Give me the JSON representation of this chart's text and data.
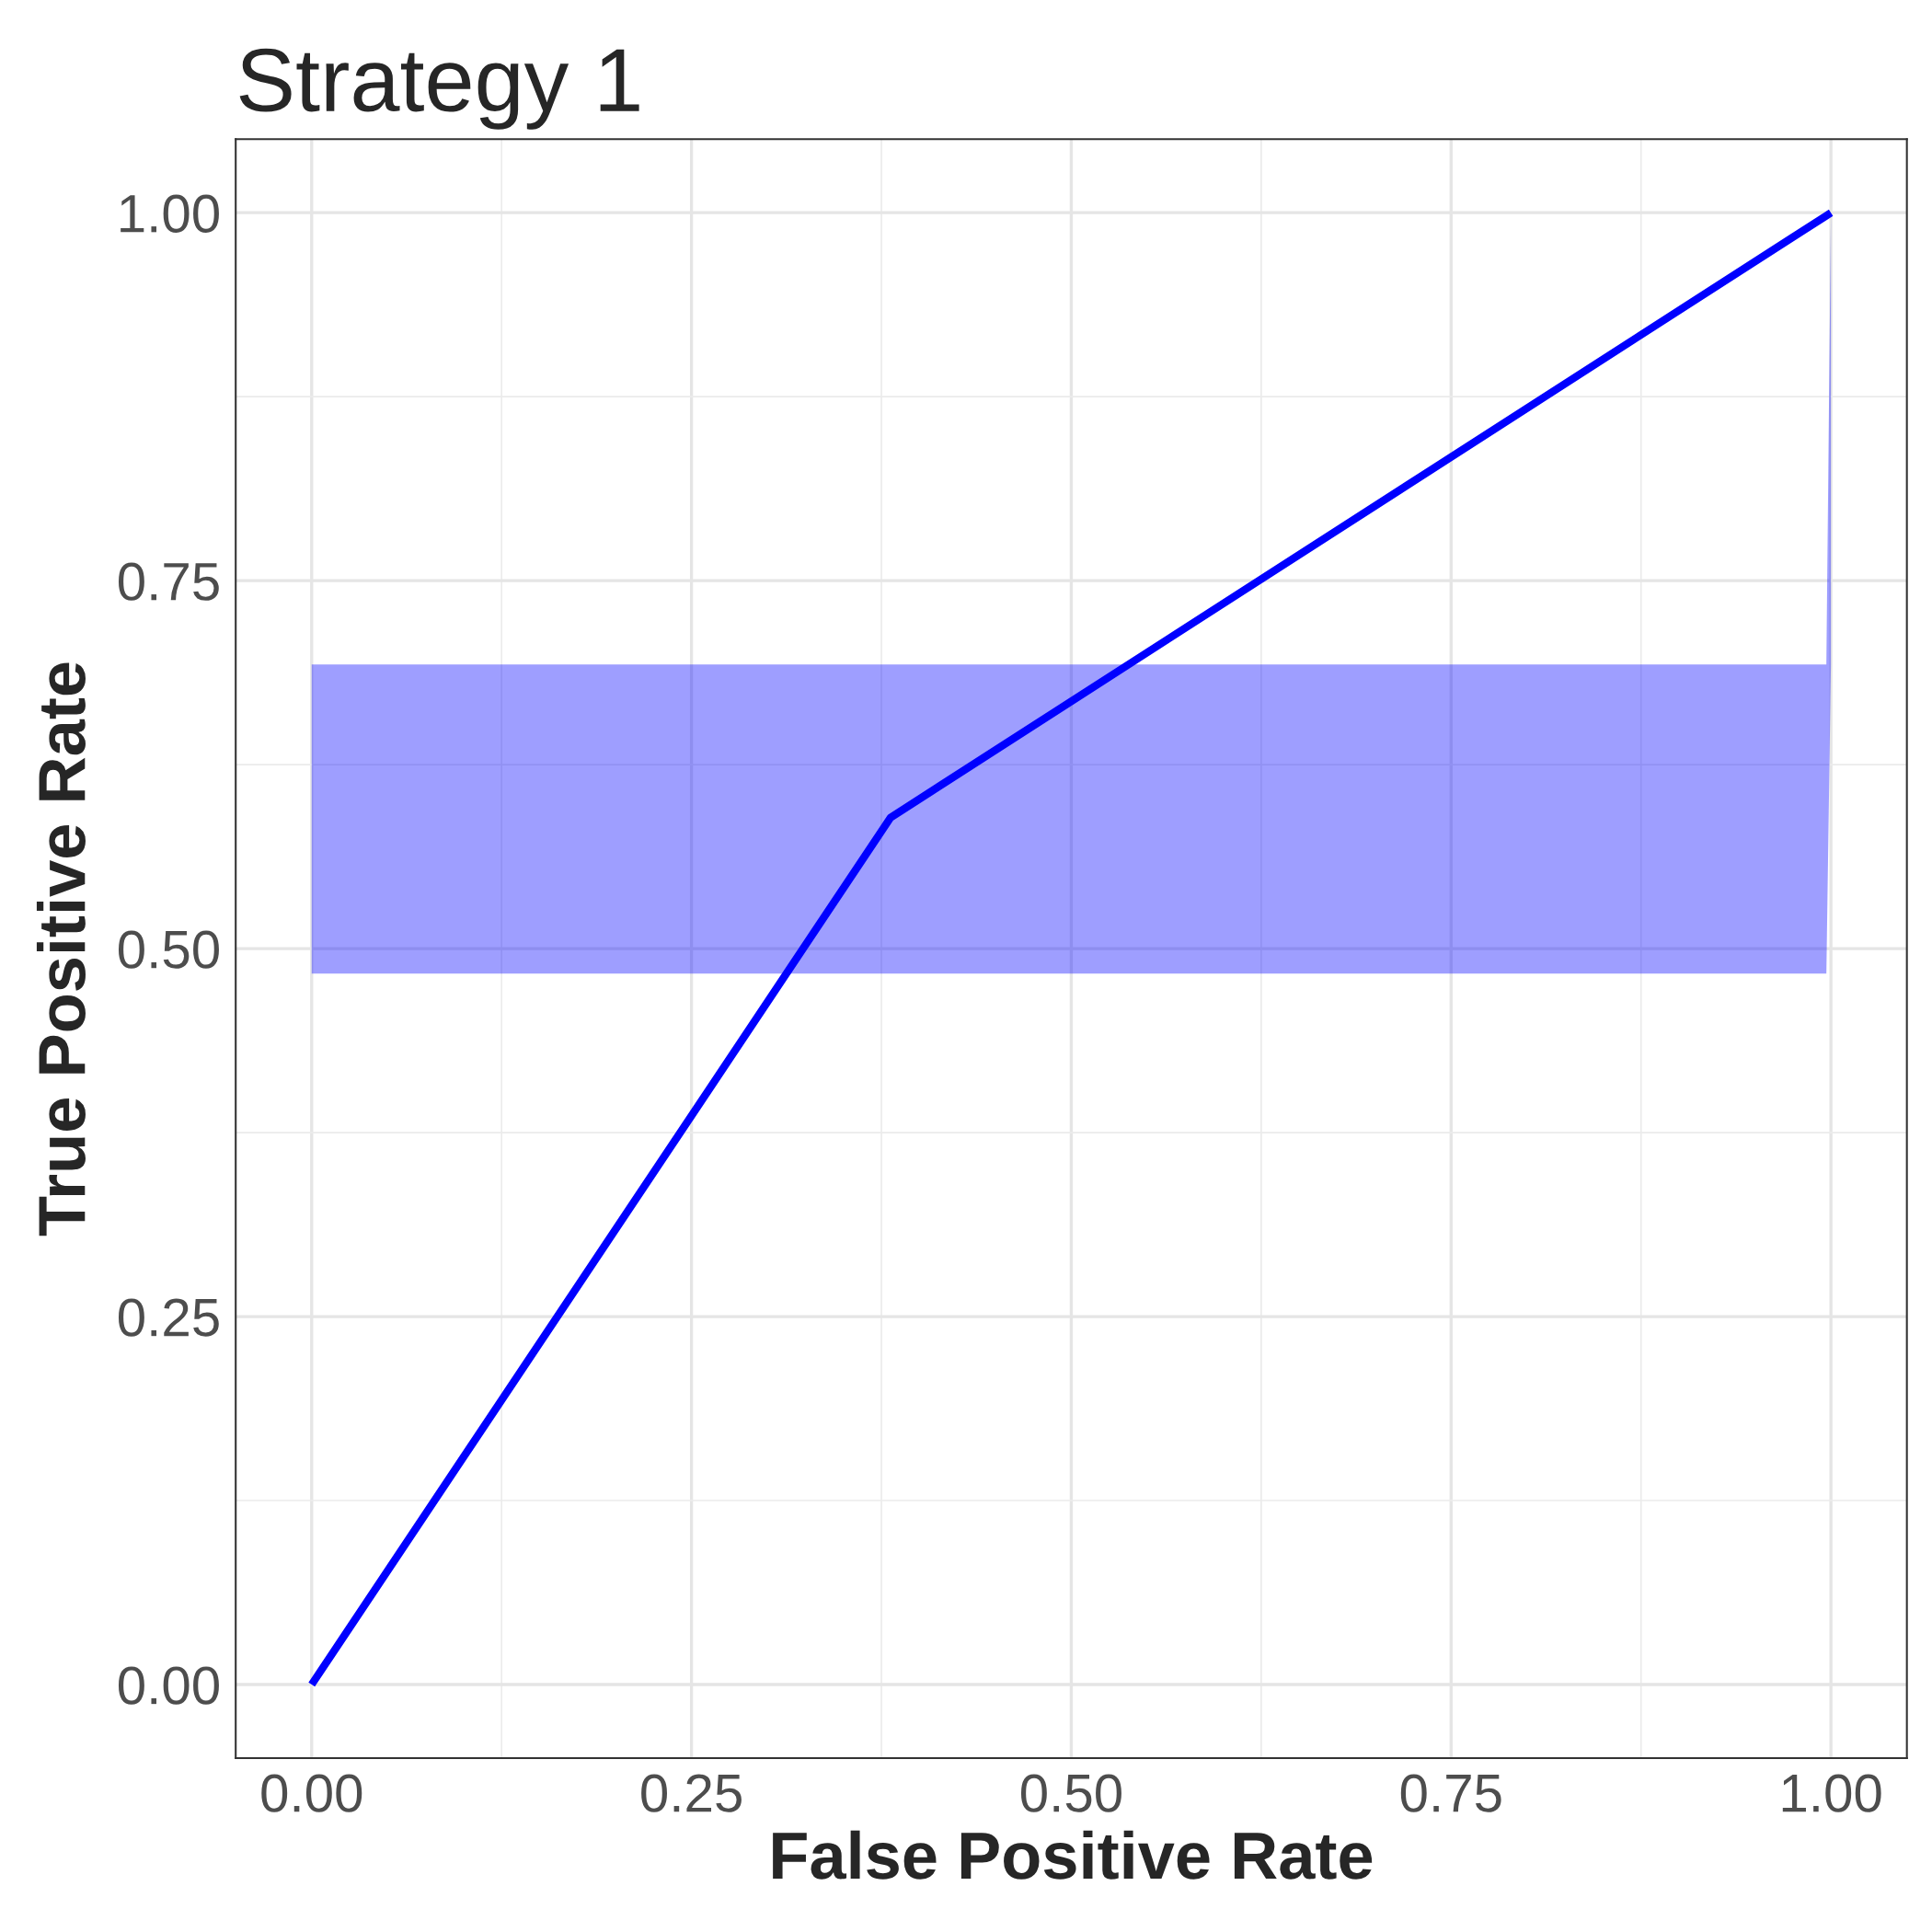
{
  "chart_data": {
    "type": "line",
    "title": "Strategy 1",
    "xlabel": "False Positive Rate",
    "ylabel": "True Positive Rate",
    "series": [
      {
        "color": "#0000ff",
        "x": [
          0,
          0.381,
          0.997,
          1
        ],
        "values": [
          0,
          0.589,
          0.998,
          1
        ],
        "lower": [
          0.483,
          0.483,
          0.483,
          0.693
        ],
        "upper": [
          0.693,
          0.693,
          0.693,
          1
        ]
      }
    ],
    "xlim": [
      -0.05,
      1.05
    ],
    "ylim": [
      -0.05,
      1.05
    ],
    "xticks": [
      {
        "value": 0,
        "label": "0.00"
      },
      {
        "value": 0.25,
        "label": "0.25"
      },
      {
        "value": 0.5,
        "label": "0.50"
      },
      {
        "value": 0.75,
        "label": "0.75"
      },
      {
        "value": 1,
        "label": "1.00"
      }
    ],
    "yticks": [
      {
        "value": 0,
        "label": "0.00"
      },
      {
        "value": 0.25,
        "label": "0.25"
      },
      {
        "value": 0.5,
        "label": "0.50"
      },
      {
        "value": 0.75,
        "label": "0.75"
      },
      {
        "value": 1,
        "label": "1.00"
      }
    ],
    "grid": true,
    "line_style": "solid",
    "marker": "none"
  }
}
